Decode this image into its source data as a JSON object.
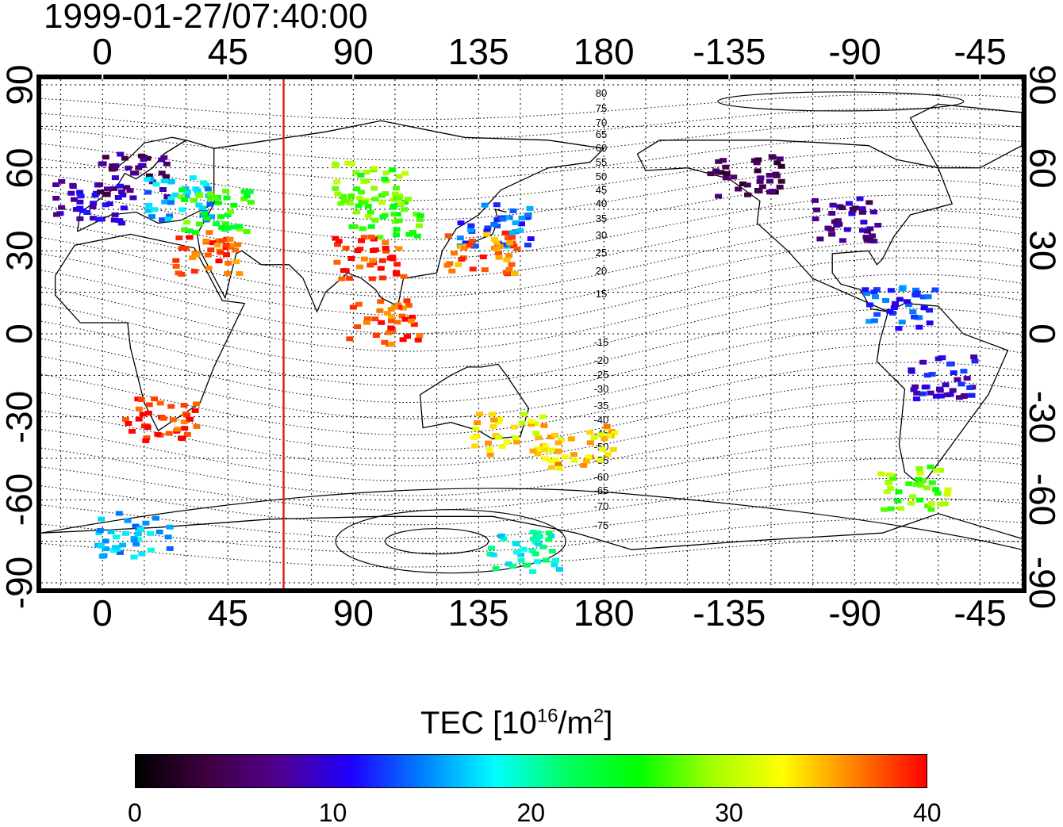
{
  "map": {
    "timestamp": "1999-01-27/07:40:00",
    "top_lon_labels": [
      "0",
      "45",
      "90",
      "135",
      "180",
      "-135",
      "-90",
      "-45"
    ],
    "bottom_lon_labels": [
      "0",
      "45",
      "90",
      "135",
      "180",
      "-135",
      "-90",
      "-45"
    ],
    "left_lat_labels": [
      "90",
      "60",
      "30",
      "0",
      "-30",
      "-60",
      "-90"
    ],
    "right_lat_labels": [
      "90",
      "60",
      "30",
      "0",
      "-30",
      "-60",
      "-90"
    ],
    "lon_range": [
      -22,
      330
    ],
    "lat_range": [
      -92,
      92
    ],
    "gridline_step_deg": 15,
    "marker_line_longitude": 65,
    "marker_line_color": "#e02020",
    "magnetic_latitude_labels": [
      "80",
      "75",
      "70",
      "65",
      "60",
      "55",
      "50",
      "45",
      "40",
      "35",
      "30",
      "25",
      "20",
      "15",
      "-15",
      "-20",
      "-25",
      "-30",
      "-35",
      "-40",
      "-45",
      "-50",
      "-55",
      "-60",
      "-65",
      "-70",
      "-75"
    ]
  },
  "colorbar": {
    "title": "TEC  [10",
    "title_sup1": "16",
    "title_mid": "/m",
    "title_sup2": "2",
    "title_end": "]",
    "min": 0,
    "max": 40,
    "tick_labels": [
      "0",
      "10",
      "20",
      "30",
      "40"
    ],
    "colors": [
      "#000000",
      "#400040",
      "#500090",
      "#2000ff",
      "#0080ff",
      "#00ffff",
      "#00ff60",
      "#00ff00",
      "#a0ff00",
      "#ffff00",
      "#ff8000",
      "#ff0000"
    ]
  },
  "tec_clusters": [
    {
      "lon": -5,
      "lat": 48,
      "tec": 9
    },
    {
      "lon": 10,
      "lat": 58,
      "tec": 6
    },
    {
      "lon": 25,
      "lat": 50,
      "tec": 16
    },
    {
      "lon": 40,
      "lat": 45,
      "tec": 26
    },
    {
      "lon": 35,
      "lat": 30,
      "tec": 38
    },
    {
      "lon": 100,
      "lat": 43,
      "tec": 27
    },
    {
      "lon": 95,
      "lat": 55,
      "tec": 28
    },
    {
      "lon": 140,
      "lat": 40,
      "tec": 14
    },
    {
      "lon": 135,
      "lat": 30,
      "tec": 37
    },
    {
      "lon": 95,
      "lat": 28,
      "tec": 39
    },
    {
      "lon": 100,
      "lat": 5,
      "tec": 38
    },
    {
      "lon": 145,
      "lat": -35,
      "tec": 33
    },
    {
      "lon": 170,
      "lat": -40,
      "tec": 34
    },
    {
      "lon": 20,
      "lat": -30,
      "tec": 39
    },
    {
      "lon": 230,
      "lat": 58,
      "tec": 4
    },
    {
      "lon": 265,
      "lat": 42,
      "tec": 7
    },
    {
      "lon": 285,
      "lat": 10,
      "tec": 13
    },
    {
      "lon": 300,
      "lat": -15,
      "tec": 10
    },
    {
      "lon": 290,
      "lat": -55,
      "tec": 28
    },
    {
      "lon": 10,
      "lat": -72,
      "tec": 16
    },
    {
      "lon": 150,
      "lat": -78,
      "tec": 19
    }
  ]
}
